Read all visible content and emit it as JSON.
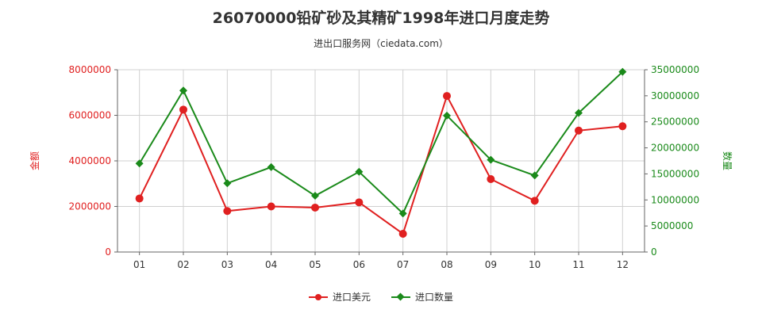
{
  "title": "26070000铅矿砂及其精矿1998年进口月度走势",
  "subtitle": "进出口服务网（ciedata.com）",
  "colors": {
    "usd": "#e02020",
    "qty": "#1a8a1a",
    "grid": "#d0d0d0",
    "axis": "#666666"
  },
  "chart_data": {
    "type": "line",
    "title": "26070000铅矿砂及其精矿1998年进口月度走势",
    "categories": [
      "01",
      "02",
      "03",
      "04",
      "05",
      "06",
      "07",
      "08",
      "09",
      "10",
      "11",
      "12"
    ],
    "y_left": {
      "label": "金额",
      "ylim": [
        0,
        8000000
      ],
      "ticks": [
        "0",
        "2000000",
        "4000000",
        "6000000",
        "8000000"
      ]
    },
    "y_right": {
      "label": "数量",
      "ylim": [
        0,
        35000000
      ],
      "ticks": [
        "0",
        "5000000",
        "10000000",
        "15000000",
        "20000000",
        "25000000",
        "30000000",
        "35000000"
      ]
    },
    "grid": true,
    "legend_position": "bottom",
    "series": [
      {
        "name": "进口美元",
        "axis": "left",
        "color": "#e02020",
        "marker": "circle",
        "values": [
          2350000,
          6250000,
          1800000,
          2000000,
          1950000,
          2180000,
          800000,
          6850000,
          3200000,
          2250000,
          5330000,
          5520000
        ]
      },
      {
        "name": "进口数量",
        "axis": "right",
        "color": "#1a8a1a",
        "marker": "diamond",
        "values": [
          17000000,
          31000000,
          13200000,
          16300000,
          10800000,
          15400000,
          7400000,
          26200000,
          17700000,
          14700000,
          26700000,
          34600000
        ]
      }
    ]
  }
}
